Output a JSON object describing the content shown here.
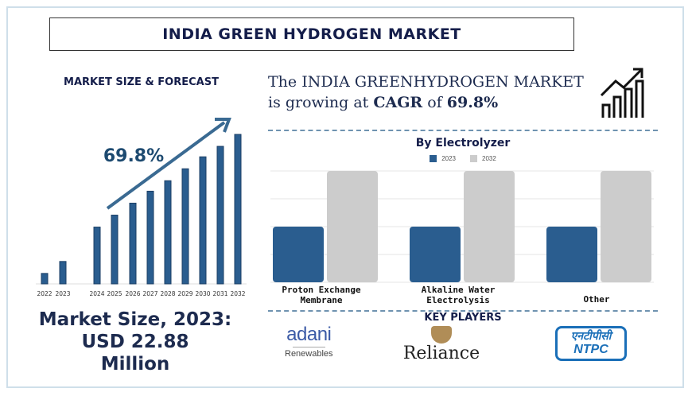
{
  "title": "INDIA GREEN HYDROGEN MARKET",
  "left": {
    "section_title": "MARKET SIZE & FORECAST",
    "cagr_label": "69.8%",
    "market_size_lines": [
      "Market Size, 2023:",
      "USD 22.88",
      "Million"
    ]
  },
  "right": {
    "headline_line1": "The INDIA GREENHYDROGEN MARKET",
    "headline_line2_prefix": "is growing at ",
    "headline_cagr_word": "CAGR",
    "headline_of": " of ",
    "headline_value": "69.8%",
    "key_players_title": "KEY PLAYERS",
    "players": [
      {
        "name": "adani",
        "sub": "Renewables"
      },
      {
        "name": "Reliance"
      },
      {
        "hindi": "एनटीपीसी",
        "name": "NTPC"
      }
    ]
  },
  "colors": {
    "navy": "#141d4a",
    "bar_blue": "#2a5d8f",
    "bar_grey": "#cccccc",
    "arrow": "#3a6a92"
  },
  "chart_data": [
    {
      "type": "bar",
      "title": "MARKET SIZE & FORECAST",
      "categories": [
        "2022",
        "2023",
        "2024",
        "2025",
        "2026",
        "2027",
        "2028",
        "2029",
        "2030",
        "2031",
        "2032"
      ],
      "values": [
        7,
        15,
        38,
        46,
        54,
        62,
        69,
        77,
        85,
        92,
        100
      ],
      "annotation": "69.8%",
      "value_unit": "relative (no axis shown)"
    },
    {
      "type": "bar",
      "title": "By Electrolyzer",
      "categories": [
        "Proton Exchange Membrane",
        "Alkaline Water Electrolysis",
        "Other"
      ],
      "category_lines": [
        [
          "Proton Exchange",
          "Membrane"
        ],
        [
          "Alkaline Water",
          "Electrolysis"
        ],
        [
          "Other"
        ]
      ],
      "series": [
        {
          "name": "2023",
          "values": [
            50,
            50,
            50
          ]
        },
        {
          "name": "2032",
          "values": [
            100,
            100,
            100
          ]
        }
      ],
      "ylim": [
        0,
        100
      ],
      "grid": true,
      "legend": "top-center"
    }
  ]
}
